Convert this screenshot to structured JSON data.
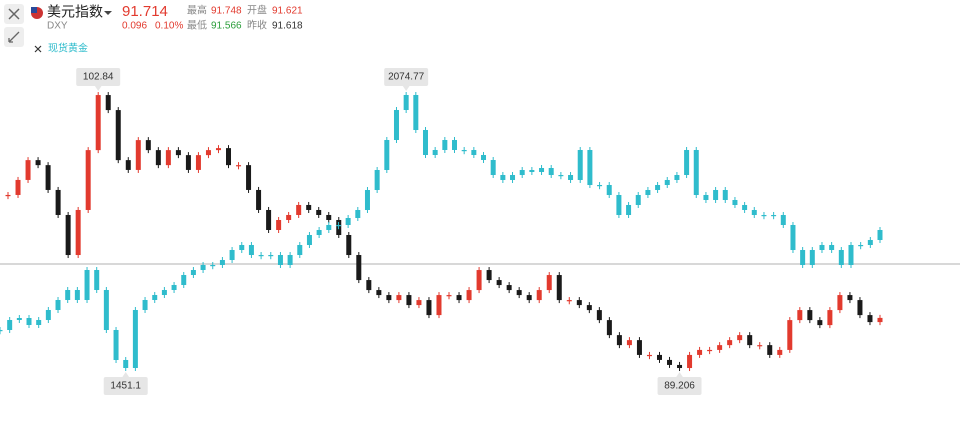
{
  "quote": {
    "code": "DXY",
    "last": "91.714",
    "change": "0.096",
    "change_pct": "0.10%",
    "high_label": "最高",
    "high": "91.748",
    "open_label": "开盘",
    "open": "91.621",
    "low_label": "最低",
    "low": "91.566",
    "prev_label": "昨收",
    "prev": "91.618"
  },
  "chart_data": {
    "type": "candlestick",
    "ylim": [
      86.61,
      105.59
    ],
    "y2lim": [
      1332.3,
      2200.42
    ],
    "series": [
      {
        "name": "美元指数",
        "color": "#e23a2e",
        "down_color": "#1a1a1a",
        "values": [
          97.85,
          98.6,
          99.59,
          99.34,
          98.1,
          96.85,
          94.85,
          97.1,
          100.09,
          102.84,
          102.09,
          99.59,
          99.1,
          100.59,
          100.09,
          99.34,
          100.09,
          99.84,
          99.1,
          99.84,
          100.09,
          100.19,
          99.34,
          99.34,
          98.1,
          97.1,
          96.1,
          96.6,
          96.85,
          97.35,
          97.1,
          96.85,
          96.6,
          95.85,
          94.85,
          93.6,
          93.1,
          92.85,
          92.6,
          92.85,
          92.35,
          92.6,
          91.85,
          92.85,
          92.85,
          92.6,
          93.1,
          94.1,
          93.6,
          93.35,
          93.1,
          92.85,
          92.6,
          93.1,
          93.85,
          92.6,
          92.6,
          92.35,
          92.1,
          91.6,
          90.85,
          90.35,
          90.6,
          89.86,
          89.86,
          89.61,
          89.36,
          89.206,
          89.86,
          90.11,
          90.11,
          90.35,
          90.6,
          90.85,
          90.35,
          90.35,
          89.86,
          90.11,
          91.6,
          92.1,
          91.6,
          91.35,
          92.1,
          92.85,
          92.6,
          91.85,
          91.5,
          91.71
        ]
      },
      {
        "name": "现货黄金",
        "color": "#2fbccc",
        "down_color": "#2fbccc",
        "axis": "y2",
        "values": [
          1537.91,
          1560.76,
          1565.33,
          1549.34,
          1560.76,
          1583.6,
          1606.45,
          1629.29,
          1606.45,
          1674.98,
          1629.29,
          1537.91,
          1469.38,
          1451.1,
          1583.6,
          1606.45,
          1617.87,
          1629.29,
          1640.72,
          1663.56,
          1674.98,
          1686.41,
          1686.41,
          1697.83,
          1720.67,
          1732.1,
          1709.25,
          1709.25,
          1709.25,
          1686.41,
          1709.25,
          1732.1,
          1754.94,
          1766.36,
          1777.79,
          1777.79,
          1793.78,
          1812.05,
          1857.74,
          1903.43,
          1971.97,
          2040.5,
          2074.77,
          1994.81,
          1937.7,
          1949.12,
          1971.97,
          1949.12,
          1949.12,
          1937.7,
          1926.28,
          1892.01,
          1880.59,
          1892.01,
          1903.43,
          1898.86,
          1907.99,
          1892.01,
          1892.01,
          1880.59,
          1949.12,
          1869.17,
          1869.17,
          1846.32,
          1800.63,
          1823.48,
          1846.32,
          1857.74,
          1869.17,
          1880.59,
          1892.01,
          1949.12,
          1846.32,
          1834.9,
          1857.74,
          1834.9,
          1823.48,
          1812.05,
          1800.63,
          1800.63,
          1800.63,
          1777.79,
          1720.67,
          1686.41,
          1720.67,
          1732.1,
          1720.67,
          1686.41,
          1732.1,
          1732.1,
          1743.52,
          1766.36
        ]
      }
    ]
  }
}
